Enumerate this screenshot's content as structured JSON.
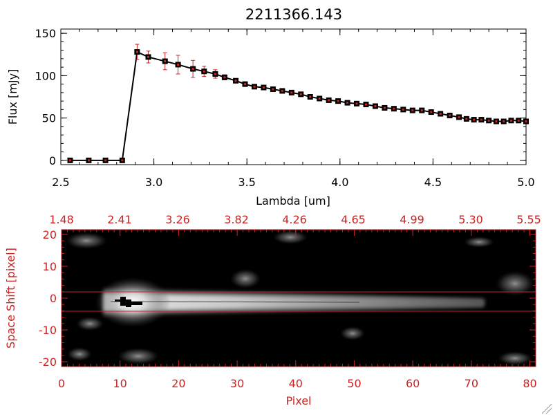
{
  "colors": {
    "axis_top": "#000000",
    "axis_bottom": "#cc2222",
    "errorbar": "#cc2222",
    "marker": "#000000",
    "line": "#000000"
  },
  "chart_data": [
    {
      "type": "line",
      "title": "2211366.143",
      "xlabel": "Lambda [um]",
      "ylabel": "Flux [mJy]",
      "xlim": [
        2.5,
        5.0
      ],
      "ylim": [
        -5,
        155
      ],
      "x_ticks": [
        "2.5",
        "3.0",
        "3.5",
        "4.0",
        "4.5",
        "5.0"
      ],
      "y_ticks": [
        "0",
        "50",
        "100",
        "150"
      ],
      "series": [
        {
          "x": [
            2.55,
            2.65,
            2.74,
            2.83,
            2.91,
            2.97,
            3.06,
            3.13,
            3.21,
            3.27,
            3.33,
            3.38,
            3.44,
            3.49,
            3.54,
            3.59,
            3.64,
            3.69,
            3.74,
            3.79,
            3.84,
            3.89,
            3.94,
            3.99,
            4.04,
            4.09,
            4.14,
            4.19,
            4.24,
            4.29,
            4.34,
            4.39,
            4.44,
            4.49,
            4.54,
            4.59,
            4.64,
            4.68,
            4.72,
            4.76,
            4.8,
            4.84,
            4.88,
            4.92,
            4.96,
            5.0
          ],
          "y": [
            0,
            0,
            0,
            0,
            128,
            122,
            117,
            113,
            108,
            105,
            102,
            98,
            94,
            90,
            87,
            86,
            84,
            82,
            80,
            78,
            75,
            73,
            71,
            70,
            68,
            67,
            66,
            64,
            62,
            61,
            60,
            59,
            59,
            57,
            55,
            53,
            51,
            49,
            48,
            48,
            47,
            46,
            46,
            47,
            47,
            46
          ],
          "yerr": [
            0,
            0,
            0,
            0,
            9,
            7,
            10,
            11,
            10,
            6,
            5,
            3,
            2,
            2,
            2,
            2,
            2,
            2,
            2,
            2,
            2,
            2,
            2,
            2,
            2,
            2,
            2,
            2,
            2,
            2,
            2,
            2,
            2,
            2,
            2,
            2,
            2,
            2,
            2,
            2,
            2,
            2,
            2,
            2,
            2,
            2
          ]
        }
      ]
    },
    {
      "type": "heatmap",
      "xlabel": "Pixel",
      "ylabel": "Space Shift [pixel]",
      "xlim": [
        0,
        81
      ],
      "ylim": [
        -21.5,
        21.5
      ],
      "x_ticks": [
        "0",
        "10",
        "20",
        "30",
        "40",
        "50",
        "60",
        "70",
        "80"
      ],
      "y_ticks": [
        "-20",
        "-10",
        "0",
        "10",
        "20"
      ],
      "top_axis_ticks": [
        "1.48",
        "2.41",
        "3.26",
        "3.82",
        "4.26",
        "4.65",
        "4.99",
        "5.30",
        "5.55"
      ],
      "trace_band": [
        -3,
        3
      ],
      "colormap": "grayscale"
    }
  ]
}
